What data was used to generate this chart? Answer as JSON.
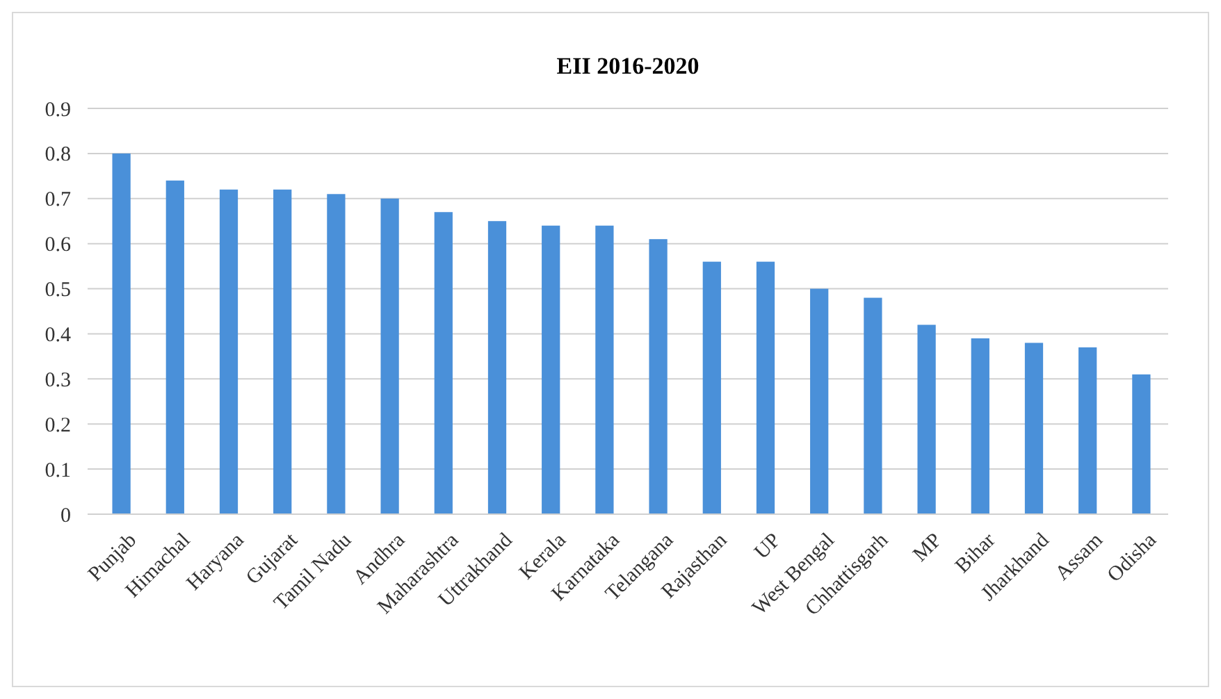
{
  "chart_data": {
    "type": "bar",
    "title": "EII 2016-2020",
    "categories": [
      "Punjab",
      "Himachal",
      "Haryana",
      "Gujarat",
      "Tamil Nadu",
      "Andhra",
      "Maharashtra",
      "Uttrakhand",
      "Kerala",
      "Karnataka",
      "Telangana",
      "Rajasthan",
      "UP",
      "West Bengal",
      "Chhattisgarh",
      "MP",
      "Bihar",
      "Jharkhand",
      "Assam",
      "Odisha"
    ],
    "values": [
      0.8,
      0.74,
      0.72,
      0.72,
      0.71,
      0.7,
      0.67,
      0.65,
      0.64,
      0.64,
      0.61,
      0.56,
      0.56,
      0.5,
      0.48,
      0.42,
      0.39,
      0.38,
      0.37,
      0.31
    ],
    "color": "#4a90d9",
    "ylim": [
      0,
      0.9
    ],
    "yticks": [
      0,
      0.1,
      0.2,
      0.3,
      0.4,
      0.5,
      0.6,
      0.7,
      0.8,
      0.9
    ],
    "grid": "y"
  }
}
